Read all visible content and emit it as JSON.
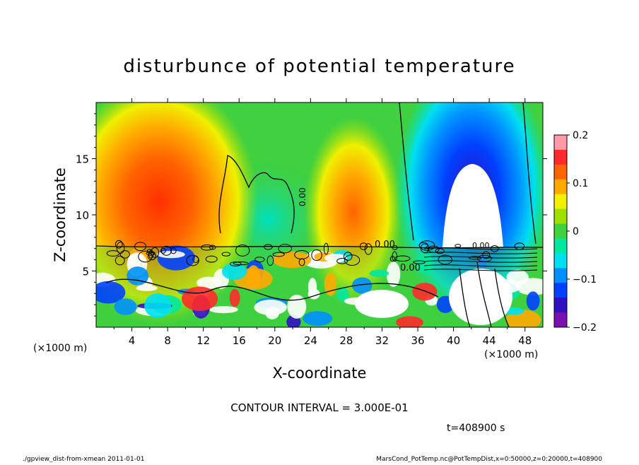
{
  "chart_data": {
    "type": "heatmap",
    "title": "disturbunce of potential temperature",
    "xlabel": "X-coordinate",
    "ylabel": "Z-coordinate",
    "x_units": "(×1000 m)",
    "y_units": "(×1000 m)",
    "xlim": [
      0,
      50
    ],
    "ylim": [
      0,
      20
    ],
    "x_ticks": [
      4,
      8,
      12,
      16,
      20,
      24,
      28,
      32,
      36,
      40,
      44,
      48
    ],
    "y_ticks": [
      5,
      10,
      15
    ],
    "colorbar": {
      "min": -0.2,
      "max": 0.2,
      "tick_values": [
        0.2,
        0.1,
        0,
        -0.1,
        -0.2
      ],
      "tick_labels": [
        "0.2",
        "0.1",
        "0",
        "−0.1",
        "−0.2"
      ],
      "colors": [
        "#ff9aa8",
        "#ff2a2a",
        "#ff6400",
        "#ffaa00",
        "#f0f000",
        "#a0e000",
        "#40d040",
        "#00e8a0",
        "#00e0f0",
        "#0090ff",
        "#0040ff",
        "#3010c0",
        "#7a10b0"
      ]
    },
    "contour_interval": "CONTOUR INTERVAL = 3.000E-01",
    "contour_labels": [
      "0.00",
      "0.00",
      "0.00",
      "0.00"
    ],
    "grid": false
  },
  "time_label": "t=408900 s",
  "footer_left": "./gpview_dist-from-xmean  2011-01-01",
  "footer_right": "MarsCond_PotTemp.nc@PotTempDist,x=0:50000,z=0:20000,t=408900"
}
